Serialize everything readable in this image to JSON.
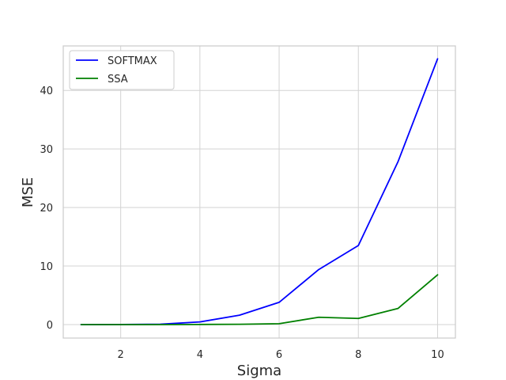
{
  "chart_data": {
    "type": "line",
    "title": "",
    "xlabel": "Sigma",
    "ylabel": "MSE",
    "x": [
      1,
      2,
      3,
      4,
      5,
      6,
      7,
      8,
      9,
      10
    ],
    "xlim": [
      0.55,
      10.45
    ],
    "ylim": [
      -2.3,
      47.6
    ],
    "xticks": [
      2,
      4,
      6,
      8,
      10
    ],
    "yticks": [
      0,
      10,
      20,
      30,
      40
    ],
    "grid": true,
    "legend_position": "top-left",
    "series": [
      {
        "name": "SOFTMAX",
        "color": "#0000ff",
        "values": [
          0.0,
          0.02,
          0.06,
          0.45,
          1.6,
          3.8,
          9.4,
          13.5,
          27.8,
          45.4
        ]
      },
      {
        "name": "SSA",
        "color": "#008000",
        "values": [
          0.0,
          0.0,
          0.0,
          0.02,
          0.05,
          0.15,
          1.25,
          1.05,
          2.75,
          8.5
        ]
      }
    ],
    "colors": {
      "grid": "#d3d3d3",
      "spine": "#cccccc",
      "background": "#ffffff",
      "text": "#262626"
    }
  }
}
